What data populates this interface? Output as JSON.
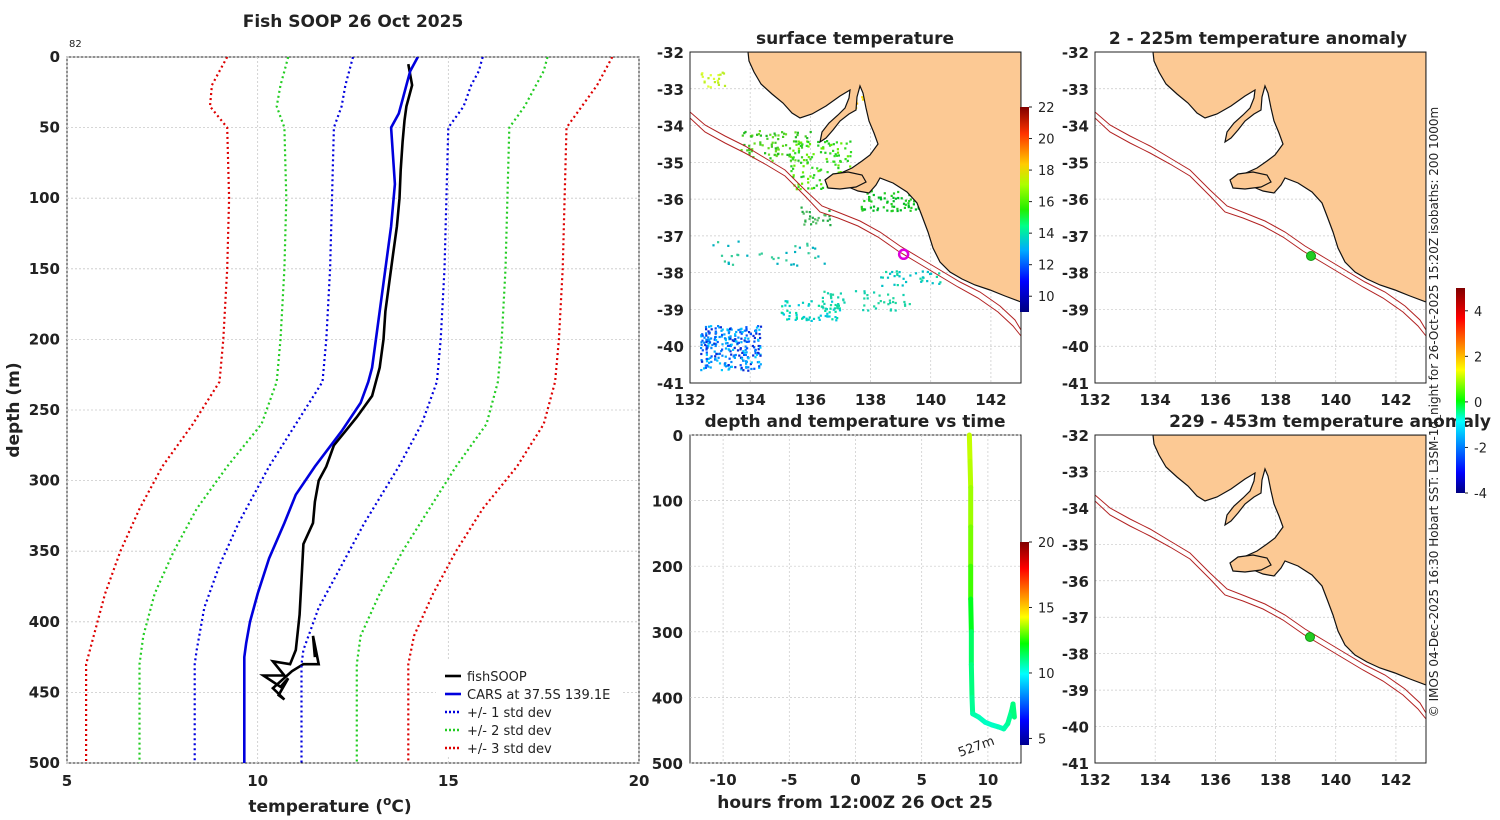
{
  "chart_data": [
    {
      "type": "line",
      "title": "Fish SOOP 26 Oct 2025",
      "xlabel": "temperature (oC)",
      "ylabel": "depth (m)",
      "xlim": [
        5,
        20
      ],
      "ylim": [
        500,
        0
      ],
      "xticks": [
        "5",
        "10",
        "15",
        "20"
      ],
      "yticks": [
        "0",
        "50",
        "100",
        "150",
        "200",
        "250",
        "300",
        "350",
        "400",
        "450",
        "500"
      ],
      "corner_label": "82",
      "grid": true,
      "legend": {
        "location": "bottom-right",
        "entries": [
          "fishSOOP",
          "CARS at 37.5S 139.1E",
          "+/- 1 std dev",
          "+/- 2 std dev",
          "+/- 3 std dev"
        ]
      },
      "series": [
        {
          "name": "fishSOOP",
          "color": "#000000",
          "style": "solid",
          "points": [
            [
              13.95,
              5
            ],
            [
              14.05,
              20
            ],
            [
              13.9,
              35
            ],
            [
              13.85,
              45
            ],
            [
              13.8,
              60
            ],
            [
              13.75,
              80
            ],
            [
              13.72,
              100
            ],
            [
              13.65,
              120
            ],
            [
              13.55,
              140
            ],
            [
              13.45,
              160
            ],
            [
              13.35,
              180
            ],
            [
              13.3,
              200
            ],
            [
              13.2,
              220
            ],
            [
              13.0,
              240
            ],
            [
              12.6,
              255
            ],
            [
              12.3,
              265
            ],
            [
              12.0,
              275
            ],
            [
              11.8,
              290
            ],
            [
              11.6,
              300
            ],
            [
              11.5,
              315
            ],
            [
              11.45,
              330
            ],
            [
              11.2,
              345
            ],
            [
              11.15,
              370
            ],
            [
              11.1,
              395
            ],
            [
              11.0,
              420
            ],
            [
              10.85,
              430
            ],
            [
              10.4,
              428
            ],
            [
              10.7,
              438
            ],
            [
              10.15,
              438
            ],
            [
              10.6,
              446
            ],
            [
              10.8,
              440
            ],
            [
              10.55,
              452
            ],
            [
              10.7,
              455
            ],
            [
              10.4,
              447
            ],
            [
              10.9,
              435
            ],
            [
              11.2,
              430
            ],
            [
              11.6,
              430
            ],
            [
              11.45,
              410
            ],
            [
              11.5,
              425
            ]
          ]
        },
        {
          "name": "CARS at 37.5S 139.1E",
          "color": "#0000dd",
          "style": "solid",
          "points": [
            [
              14.2,
              0
            ],
            [
              14.0,
              10
            ],
            [
              13.9,
              20
            ],
            [
              13.8,
              30
            ],
            [
              13.7,
              40
            ],
            [
              13.5,
              50
            ],
            [
              13.55,
              70
            ],
            [
              13.6,
              90
            ],
            [
              13.5,
              120
            ],
            [
              13.4,
              140
            ],
            [
              13.3,
              160
            ],
            [
              13.2,
              180
            ],
            [
              13.1,
              200
            ],
            [
              13.0,
              220
            ],
            [
              12.9,
              230
            ],
            [
              12.7,
              245
            ],
            [
              12.2,
              265
            ],
            [
              11.5,
              290
            ],
            [
              11.0,
              310
            ],
            [
              10.7,
              330
            ],
            [
              10.3,
              355
            ],
            [
              10.0,
              380
            ],
            [
              9.8,
              400
            ],
            [
              9.7,
              415
            ],
            [
              9.65,
              425
            ],
            [
              9.65,
              500
            ]
          ]
        },
        {
          "name": "+1 std dev",
          "color": "#0000dd",
          "style": "dotted",
          "points": [
            [
              15.9,
              0
            ],
            [
              15.8,
              10
            ],
            [
              15.6,
              20
            ],
            [
              15.4,
              35
            ],
            [
              15.0,
              50
            ],
            [
              14.95,
              100
            ],
            [
              14.9,
              150
            ],
            [
              14.8,
              200
            ],
            [
              14.7,
              230
            ],
            [
              14.3,
              260
            ],
            [
              13.7,
              290
            ],
            [
              12.8,
              330
            ],
            [
              12.2,
              360
            ],
            [
              11.6,
              390
            ],
            [
              11.2,
              420
            ],
            [
              11.15,
              430
            ],
            [
              11.15,
              500
            ]
          ]
        },
        {
          "name": "-1 std dev",
          "color": "#0000dd",
          "style": "dotted",
          "points": [
            [
              12.5,
              0
            ],
            [
              12.4,
              10
            ],
            [
              12.3,
              20
            ],
            [
              12.2,
              35
            ],
            [
              12.0,
              50
            ],
            [
              11.95,
              100
            ],
            [
              11.9,
              150
            ],
            [
              11.8,
              200
            ],
            [
              11.7,
              230
            ],
            [
              11.0,
              260
            ],
            [
              10.3,
              290
            ],
            [
              9.5,
              330
            ],
            [
              9.0,
              360
            ],
            [
              8.6,
              390
            ],
            [
              8.4,
              420
            ],
            [
              8.35,
              430
            ],
            [
              8.35,
              500
            ]
          ]
        },
        {
          "name": "+2 std dev",
          "color": "#22cc22",
          "style": "dotted",
          "points": [
            [
              17.6,
              0
            ],
            [
              17.5,
              10
            ],
            [
              17.3,
              20
            ],
            [
              17.0,
              35
            ],
            [
              16.6,
              50
            ],
            [
              16.55,
              100
            ],
            [
              16.5,
              150
            ],
            [
              16.4,
              200
            ],
            [
              16.3,
              230
            ],
            [
              16.0,
              260
            ],
            [
              15.2,
              290
            ],
            [
              14.5,
              320
            ],
            [
              13.8,
              350
            ],
            [
              13.2,
              380
            ],
            [
              12.7,
              410
            ],
            [
              12.6,
              430
            ],
            [
              12.6,
              500
            ]
          ]
        },
        {
          "name": "-2 std dev",
          "color": "#22cc22",
          "style": "dotted",
          "points": [
            [
              10.8,
              0
            ],
            [
              10.7,
              10
            ],
            [
              10.6,
              20
            ],
            [
              10.5,
              35
            ],
            [
              10.7,
              50
            ],
            [
              10.75,
              100
            ],
            [
              10.7,
              150
            ],
            [
              10.6,
              200
            ],
            [
              10.5,
              230
            ],
            [
              10.1,
              260
            ],
            [
              9.2,
              290
            ],
            [
              8.4,
              320
            ],
            [
              7.8,
              350
            ],
            [
              7.3,
              380
            ],
            [
              7.0,
              410
            ],
            [
              6.9,
              430
            ],
            [
              6.9,
              500
            ]
          ]
        },
        {
          "name": "+3 std dev",
          "color": "#dd0000",
          "style": "dotted",
          "points": [
            [
              19.3,
              0
            ],
            [
              19.1,
              10
            ],
            [
              18.9,
              20
            ],
            [
              18.5,
              35
            ],
            [
              18.1,
              50
            ],
            [
              18.05,
              100
            ],
            [
              18.0,
              150
            ],
            [
              17.9,
              200
            ],
            [
              17.8,
              230
            ],
            [
              17.5,
              260
            ],
            [
              16.8,
              290
            ],
            [
              15.9,
              320
            ],
            [
              15.2,
              350
            ],
            [
              14.6,
              380
            ],
            [
              14.1,
              410
            ],
            [
              13.95,
              430
            ],
            [
              13.95,
              500
            ]
          ]
        },
        {
          "name": "-3 std dev",
          "color": "#dd0000",
          "style": "dotted",
          "points": [
            [
              9.2,
              0
            ],
            [
              9.0,
              10
            ],
            [
              8.8,
              20
            ],
            [
              8.75,
              35
            ],
            [
              9.2,
              50
            ],
            [
              9.25,
              100
            ],
            [
              9.2,
              150
            ],
            [
              9.1,
              200
            ],
            [
              9.0,
              230
            ],
            [
              8.3,
              260
            ],
            [
              7.5,
              290
            ],
            [
              6.9,
              320
            ],
            [
              6.4,
              350
            ],
            [
              6.0,
              380
            ],
            [
              5.7,
              410
            ],
            [
              5.5,
              430
            ],
            [
              5.5,
              500
            ]
          ]
        }
      ]
    },
    {
      "type": "map",
      "title": "surface temperature",
      "xticks": [
        "132",
        "134",
        "136",
        "138",
        "140",
        "142"
      ],
      "yticks": [
        "-32",
        "-33",
        "-34",
        "-35",
        "-36",
        "-37",
        "-38",
        "-39",
        "-40",
        "-41"
      ],
      "lon_range": [
        132,
        143
      ],
      "lat_range": [
        -41,
        -32
      ],
      "marker": {
        "lon": 139.1,
        "lat": -37.5,
        "color": "#dd00dd"
      },
      "colorbar": {
        "min": 9,
        "max": 22,
        "ticks": [
          "10",
          "12",
          "14",
          "16",
          "18",
          "20",
          "22"
        ]
      }
    },
    {
      "type": "scatter",
      "title": "depth and temperature vs time",
      "xlabel": "hours from 12:00Z 26 Oct 25",
      "xticks": [
        "-10",
        "-5",
        "0",
        "5",
        "10"
      ],
      "yticks": [
        "0",
        "100",
        "200",
        "300",
        "400",
        "500"
      ],
      "xlim": [
        -12.5,
        12.5
      ],
      "ylim": [
        500,
        0
      ],
      "annotation": "527m",
      "colorbar": {
        "min": 4.5,
        "max": 20,
        "ticks": [
          "5",
          "10",
          "15",
          "20"
        ]
      },
      "points": [
        [
          8.6,
          0,
          13.8
        ],
        [
          8.65,
          40,
          13.8
        ],
        [
          8.7,
          80,
          13.6
        ],
        [
          8.7,
          140,
          13.4
        ],
        [
          8.7,
          200,
          13.0
        ],
        [
          8.7,
          250,
          12.5
        ],
        [
          8.75,
          300,
          11.5
        ],
        [
          8.75,
          350,
          11.2
        ],
        [
          8.8,
          400,
          11.0
        ],
        [
          8.85,
          425,
          10.8
        ],
        [
          9.3,
          430,
          10.6
        ],
        [
          9.8,
          438,
          10.5
        ],
        [
          10.3,
          442,
          10.4
        ],
        [
          10.8,
          445,
          10.5
        ],
        [
          11.2,
          448,
          10.6
        ],
        [
          11.5,
          440,
          10.8
        ],
        [
          11.8,
          420,
          11.0
        ],
        [
          11.9,
          410,
          11.2
        ],
        [
          12.0,
          430,
          11.0
        ]
      ]
    },
    {
      "type": "map",
      "title": "2 - 225m temperature anomaly",
      "xticks": [
        "132",
        "134",
        "136",
        "138",
        "140",
        "142"
      ],
      "yticks": [
        "-32",
        "-33",
        "-34",
        "-35",
        "-36",
        "-37",
        "-38",
        "-39",
        "-40",
        "-41"
      ],
      "lon_range": [
        132,
        143
      ],
      "lat_range": [
        -41,
        -32
      ],
      "marker": {
        "lon": 139.2,
        "lat": -37.5,
        "color": "#22cc22"
      }
    },
    {
      "type": "map",
      "title": "229 - 453m temperature anomaly",
      "xticks": [
        "132",
        "134",
        "136",
        "138",
        "140",
        "142"
      ],
      "yticks": [
        "-32",
        "-33",
        "-34",
        "-35",
        "-36",
        "-37",
        "-38",
        "-39",
        "-40",
        "-41"
      ],
      "lon_range": [
        132,
        143
      ],
      "lat_range": [
        -41,
        -32
      ],
      "marker": {
        "lon": 139.2,
        "lat": -37.5,
        "color": "#22cc22"
      },
      "colorbar": {
        "min": -4,
        "max": 5,
        "ticks": [
          "4",
          "2",
          "0",
          "-2",
          "-4"
        ]
      }
    }
  ],
  "side_caption": "© IMOS 04-Dec-2025 16:30 Hobart SST: L3SM-1d_night for 26-Oct-2025 15:20Z isobaths: 200  1000m"
}
